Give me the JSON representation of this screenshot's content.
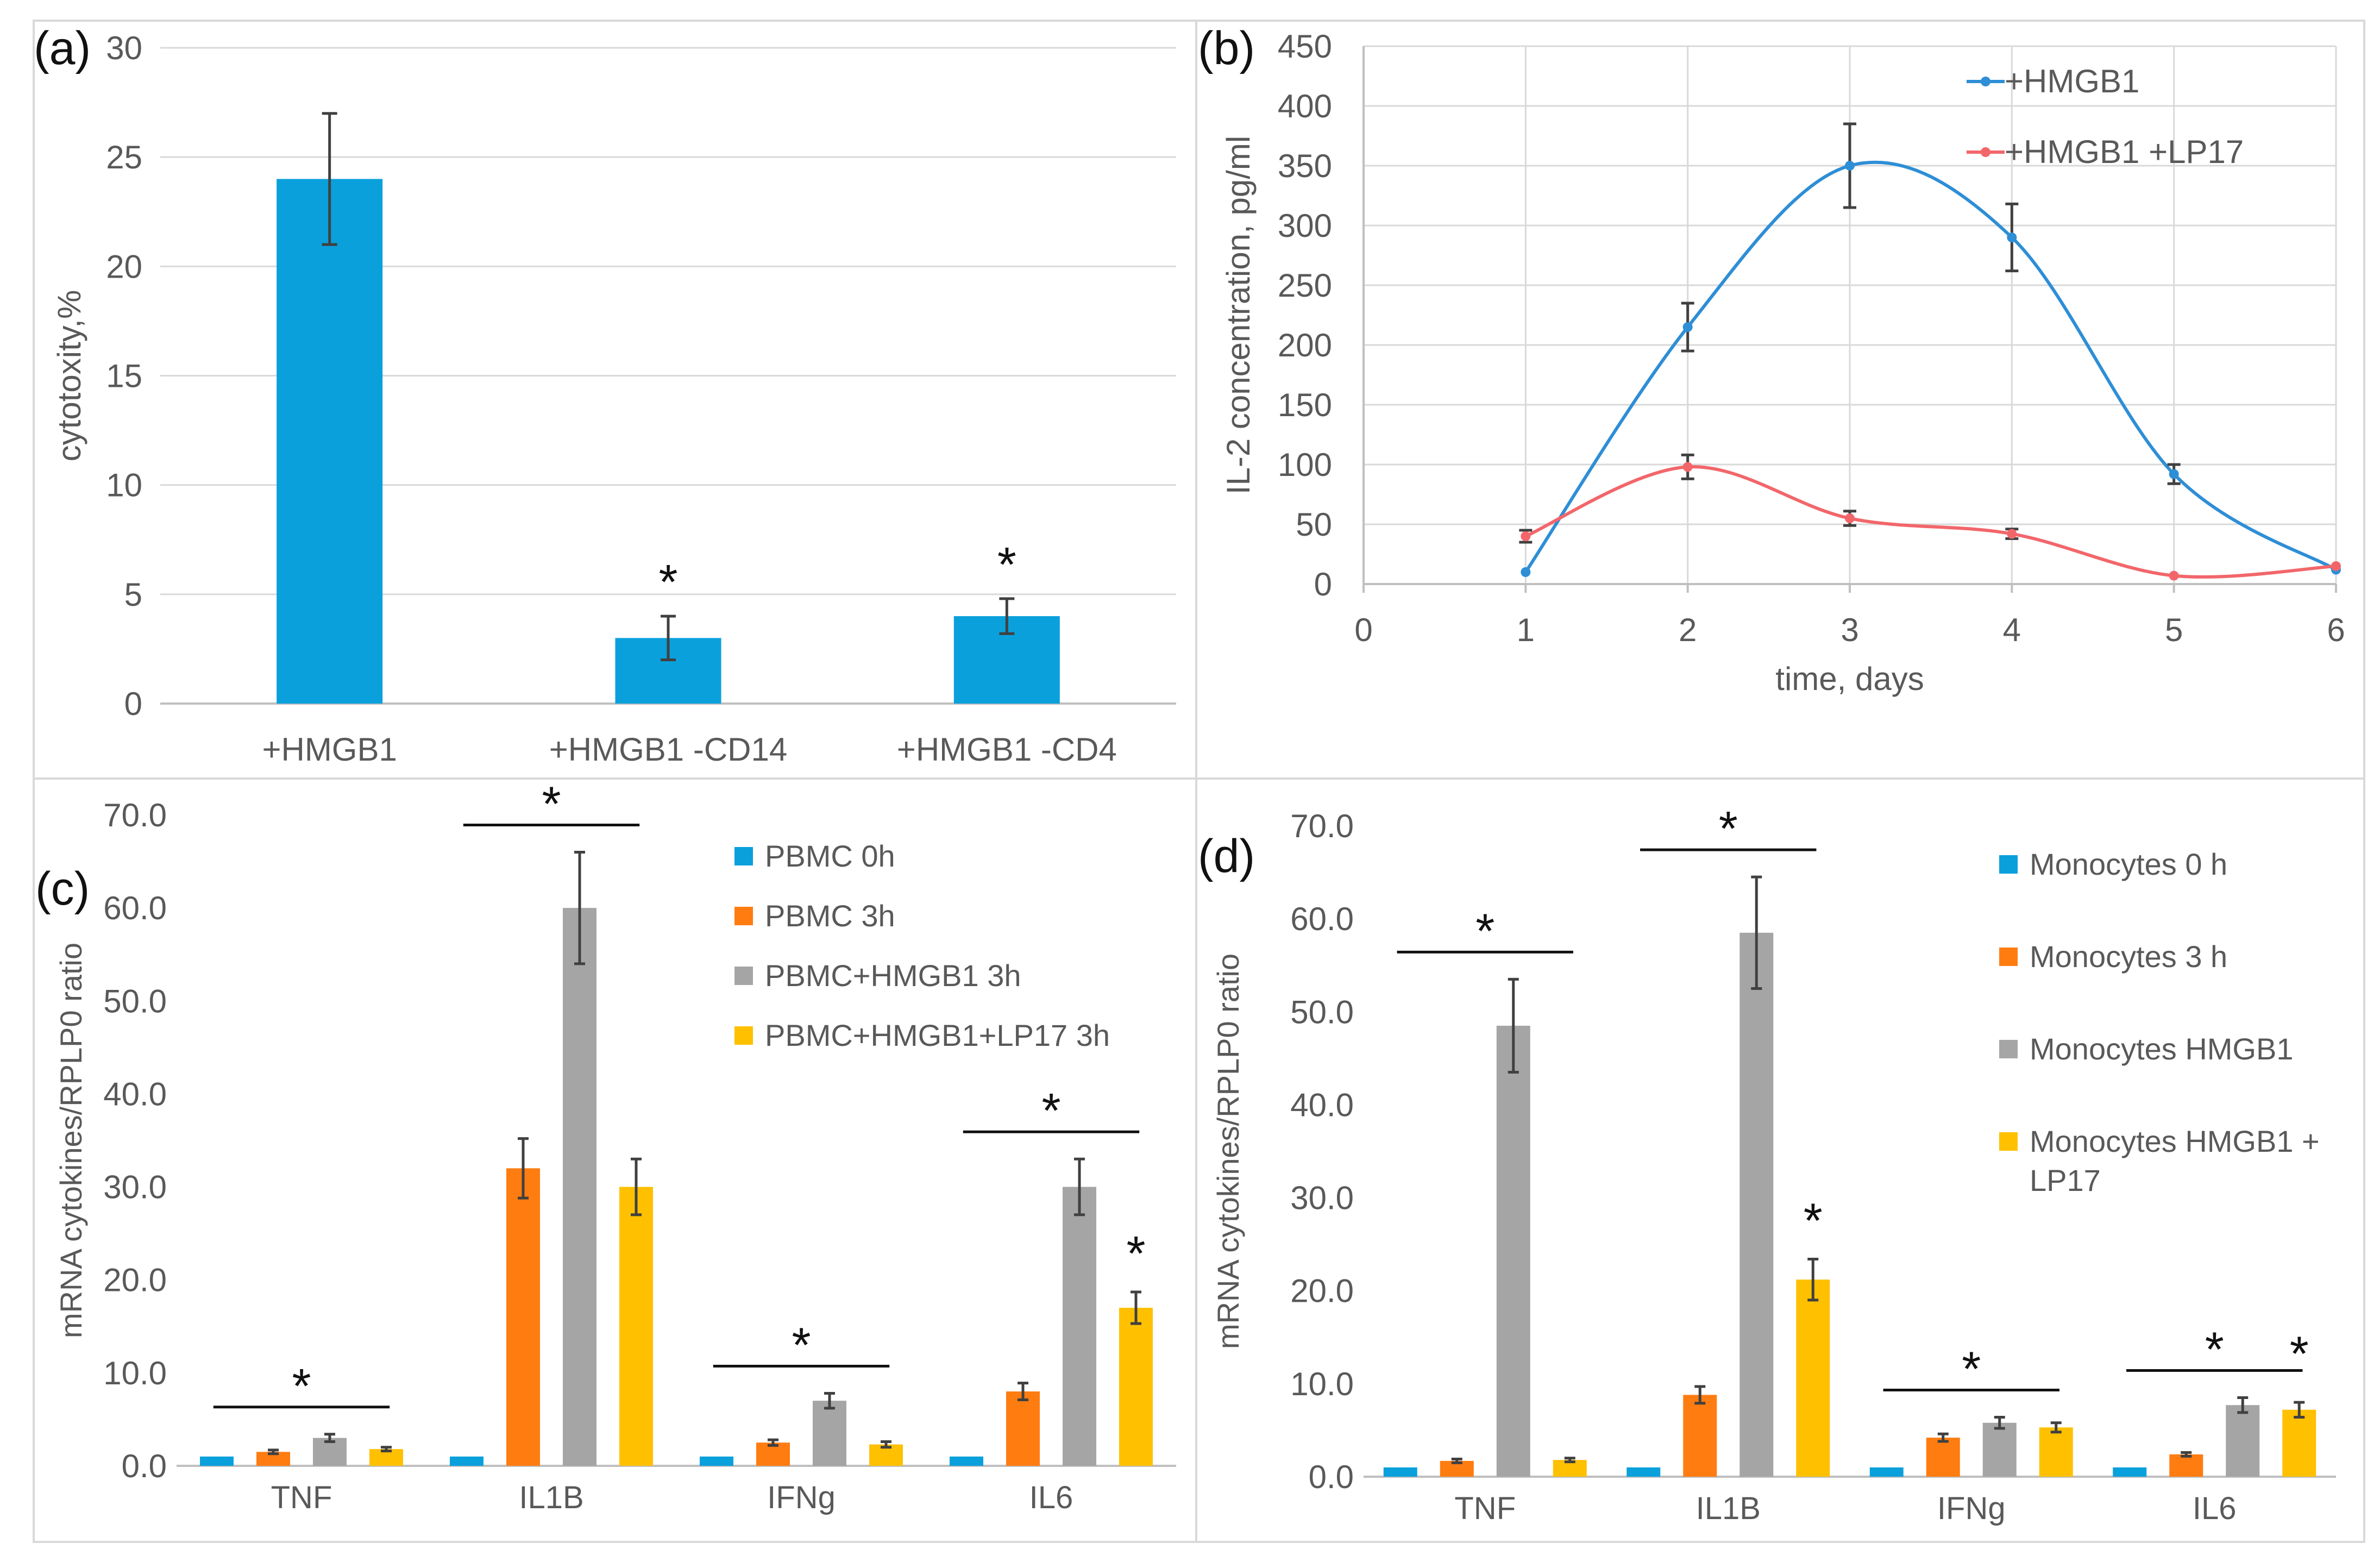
{
  "colors": {
    "blue": "#0aa0dc",
    "orange": "#ff7c11",
    "gray": "#a5a5a5",
    "yellow": "#ffc000",
    "red": "#f2666a",
    "lineblue": "#2e8ed6"
  },
  "chart_data": [
    {
      "panel": "(a)",
      "type": "bar",
      "categories": [
        "+HMGB1",
        "+HMGB1 -CD14",
        "+HMGB1 -CD4"
      ],
      "values": [
        24,
        3,
        4
      ],
      "errors": [
        3,
        1,
        0.8
      ],
      "significance": [
        "",
        "*",
        "*"
      ],
      "ylabel": "cytotoxity,%",
      "ylim": [
        0,
        30
      ],
      "yticks": [
        "0",
        "5",
        "10",
        "15",
        "20",
        "25",
        "30"
      ],
      "grid": true
    },
    {
      "panel": "(b)",
      "type": "line",
      "xlabel": "time, days",
      "ylabel": "IL-2 concentration,  pg/ml",
      "xlim": [
        0,
        6
      ],
      "ylim": [
        0,
        450
      ],
      "xticks": [
        "0",
        "1",
        "2",
        "3",
        "4",
        "5",
        "6"
      ],
      "yticks": [
        "0",
        "50",
        "100",
        "150",
        "200",
        "250",
        "300",
        "350",
        "400",
        "450"
      ],
      "legend_position": "top-right",
      "grid": true,
      "series": [
        {
          "name": "+HMGB1",
          "x": [
            1,
            2,
            3,
            4,
            5,
            6
          ],
          "values": [
            10,
            215,
            350,
            290,
            92,
            12
          ],
          "errors": [
            0,
            20,
            35,
            28,
            8,
            0
          ]
        },
        {
          "name": "+HMGB1 +LP17",
          "x": [
            1,
            2,
            3,
            4,
            5,
            6
          ],
          "values": [
            40,
            98,
            55,
            42,
            7,
            15
          ],
          "errors": [
            5,
            10,
            6,
            4,
            0,
            0
          ]
        }
      ]
    },
    {
      "panel": "(c)",
      "type": "bar",
      "ylabel": "mRNA cytokines/RPLP0 ratio",
      "ylim": [
        0,
        70
      ],
      "yticks": [
        "0.0",
        "10.0",
        "20.0",
        "30.0",
        "40.0",
        "50.0",
        "60.0",
        "70.0"
      ],
      "categories": [
        "TNF",
        "IL1B",
        "IFNg",
        "IL6"
      ],
      "legend_position": "top-right",
      "series": [
        {
          "name": "PBMC 0h",
          "values": [
            1,
            1,
            1,
            1
          ],
          "errors": [
            0,
            0,
            0,
            0
          ]
        },
        {
          "name": "PBMC 3h",
          "values": [
            1.5,
            32,
            2.5,
            8
          ],
          "errors": [
            0.2,
            3.2,
            0.3,
            0.9
          ]
        },
        {
          "name": "PBMC+HMGB1 3h",
          "values": [
            3,
            60,
            7,
            30
          ],
          "errors": [
            0.4,
            6,
            0.8,
            3
          ]
        },
        {
          "name": "PBMC+HMGB1+LP17 3h",
          "values": [
            1.8,
            30,
            2.3,
            17
          ],
          "errors": [
            0.2,
            3,
            0.3,
            1.7
          ]
        }
      ],
      "group_significance": [
        "*",
        "*",
        "*",
        "*"
      ],
      "bar_significance": [
        {
          "category": 3,
          "series": 3,
          "label": "*"
        }
      ]
    },
    {
      "panel": "(d)",
      "type": "bar",
      "ylabel": "mRNA cytokines/RPLP0 ratio",
      "ylim": [
        0,
        70
      ],
      "yticks": [
        "0.0",
        "10.0",
        "20.0",
        "30.0",
        "40.0",
        "50.0",
        "60.0",
        "70.0"
      ],
      "categories": [
        "TNF",
        "IL1B",
        "IFNg",
        "IL6"
      ],
      "legend_position": "top-right",
      "series": [
        {
          "name": "Monocytes 0 h",
          "values": [
            1,
            1,
            1,
            1
          ],
          "errors": [
            0,
            0,
            0,
            0
          ]
        },
        {
          "name": "Monocytes 3 h",
          "values": [
            1.7,
            8.8,
            4.2,
            2.4
          ],
          "errors": [
            0.2,
            0.9,
            0.4,
            0.2
          ]
        },
        {
          "name": "Monocytes HMGB1",
          "values": [
            48.5,
            58.5,
            5.8,
            7.7
          ],
          "errors": [
            5,
            6,
            0.6,
            0.8
          ]
        },
        {
          "name": "Monocytes HMGB1 + LP17",
          "values": [
            1.8,
            21.2,
            5.3,
            7.2
          ],
          "errors": [
            0.2,
            2.2,
            0.5,
            0.8
          ]
        }
      ],
      "group_significance": [
        "*",
        "*",
        "*",
        "*"
      ],
      "bar_significance": [
        {
          "category": 1,
          "series": 3,
          "label": "*"
        },
        {
          "category": 3,
          "series": 3,
          "label": "*"
        }
      ]
    }
  ]
}
